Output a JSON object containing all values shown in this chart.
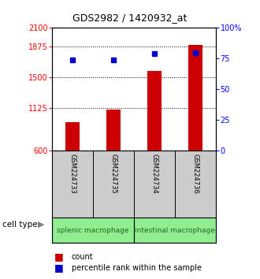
{
  "title": "GDS2982 / 1420932_at",
  "samples": [
    "GSM224733",
    "GSM224735",
    "GSM224734",
    "GSM224736"
  ],
  "bar_values": [
    950,
    1100,
    1570,
    1895
  ],
  "percentile_values": [
    74,
    74,
    79,
    80
  ],
  "ylim_left": [
    600,
    2100
  ],
  "ylim_right": [
    0,
    100
  ],
  "yticks_left": [
    600,
    1125,
    1500,
    1875,
    2100
  ],
  "yticks_right": [
    0,
    25,
    50,
    75,
    100
  ],
  "bar_color": "#cc0000",
  "dot_color": "#0000cc",
  "grid_lines": [
    1875,
    1500,
    1125
  ],
  "cell_types": [
    "splenic macrophage",
    "intestinal macrophage"
  ],
  "cell_type_ranges": [
    [
      0,
      2
    ],
    [
      2,
      4
    ]
  ],
  "sample_bg_color": "#cccccc",
  "cell_type_bg_color": "#90ee90",
  "cell_type_text_color": "#226622",
  "label_count": "count",
  "label_percentile": "percentile rank within the sample",
  "cell_type_label": "cell type",
  "title_fontsize": 9,
  "tick_fontsize": 7,
  "sample_fontsize": 6,
  "celltype_fontsize": 6.5,
  "legend_fontsize": 7,
  "bar_width": 0.35
}
